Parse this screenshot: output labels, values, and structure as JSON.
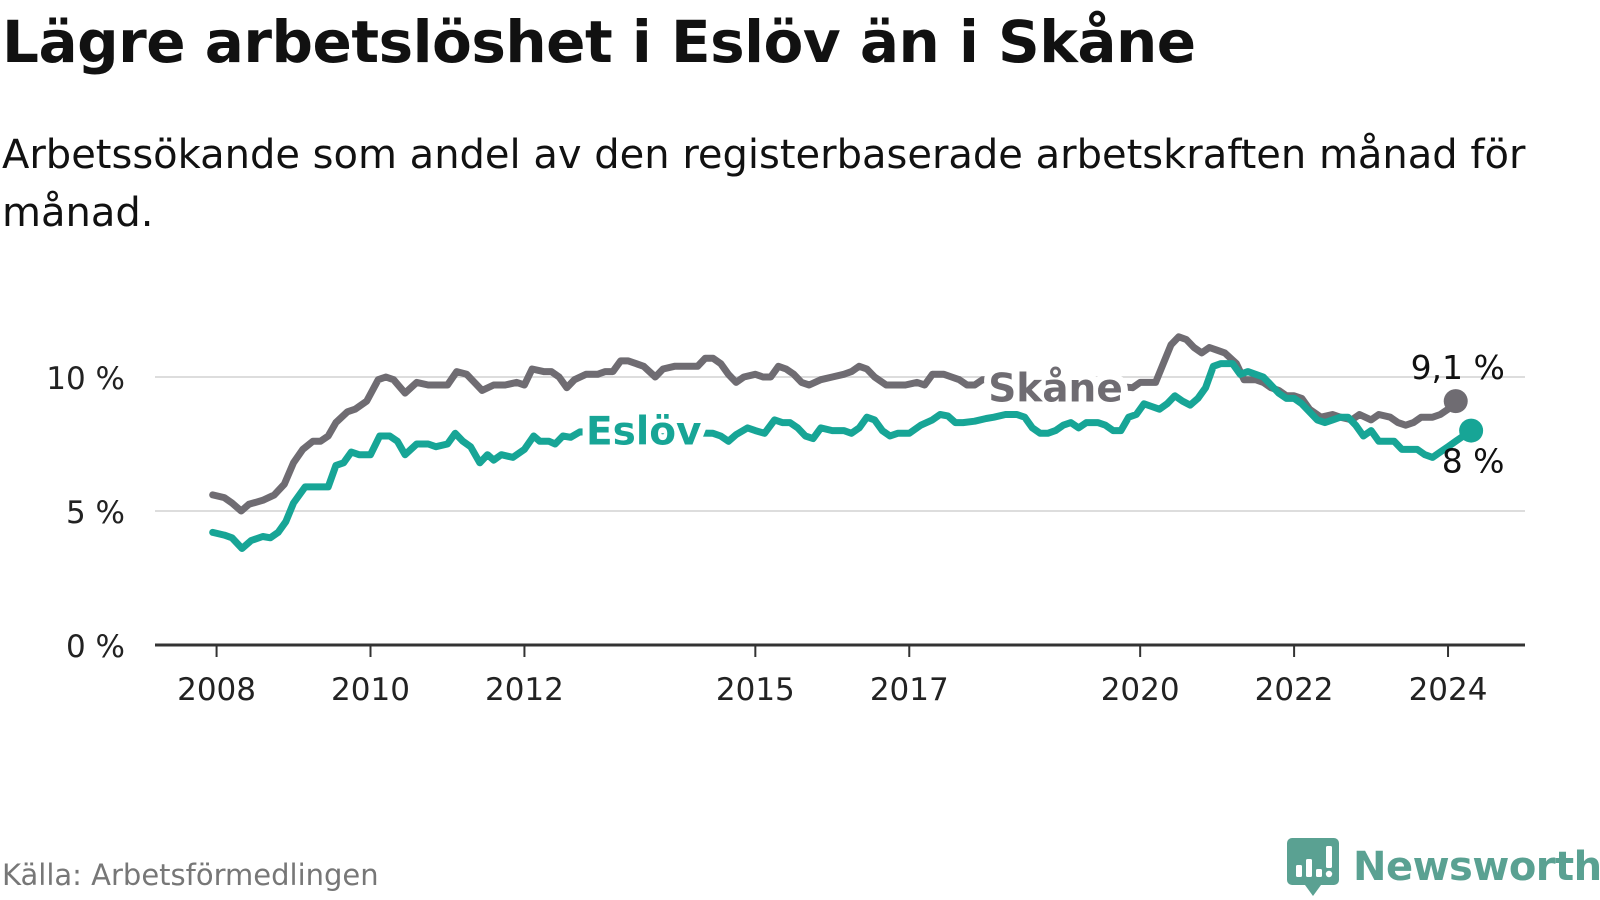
{
  "header": {
    "title": "Lägre arbetslöshet i Eslöv än i Skåne",
    "subtitle": "Arbetssökande som andel av den registerbaserade arbetskraften månad för månad."
  },
  "footer": {
    "source": "Källa: Arbetsförmedlingen",
    "brand": "Newsworthy",
    "brand_icon": "newsworthy-logo-icon"
  },
  "colors": {
    "skane": "#6f6c72",
    "eslov": "#17a596",
    "grid": "#dddddd",
    "axis": "#333333",
    "brand": "#5aa192"
  },
  "chart_data": {
    "type": "line",
    "title": "Lägre arbetslöshet i Eslöv än i Skåne",
    "xlabel": "",
    "ylabel": "",
    "x_range": [
      2007.2,
      2025.0
    ],
    "ylim": [
      0,
      12
    ],
    "grid": true,
    "y_ticks": [
      {
        "value": 0,
        "label": "0 %"
      },
      {
        "value": 5,
        "label": "5 %"
      },
      {
        "value": 10,
        "label": "10 %"
      }
    ],
    "x_ticks": [
      {
        "value": 2008,
        "label": "2008"
      },
      {
        "value": 2010,
        "label": "2010"
      },
      {
        "value": 2012,
        "label": "2012"
      },
      {
        "value": 2015,
        "label": "2015"
      },
      {
        "value": 2017,
        "label": "2017"
      },
      {
        "value": 2020,
        "label": "2020"
      },
      {
        "value": 2022,
        "label": "2022"
      },
      {
        "value": 2024,
        "label": "2024"
      }
    ],
    "series": [
      {
        "name": "Skåne",
        "color": "#6f6c72",
        "end_label": "9,1 %",
        "end_value": 9.1,
        "points": [
          [
            2007.95,
            5.6
          ],
          [
            2008.1,
            5.5
          ],
          [
            2008.2,
            5.3
          ],
          [
            2008.32,
            5.0
          ],
          [
            2008.42,
            5.25
          ],
          [
            2008.6,
            5.4
          ],
          [
            2008.75,
            5.6
          ],
          [
            2008.88,
            6.0
          ],
          [
            2009.0,
            6.8
          ],
          [
            2009.12,
            7.3
          ],
          [
            2009.25,
            7.6
          ],
          [
            2009.35,
            7.6
          ],
          [
            2009.45,
            7.8
          ],
          [
            2009.55,
            8.3
          ],
          [
            2009.7,
            8.7
          ],
          [
            2009.8,
            8.8
          ],
          [
            2009.95,
            9.1
          ],
          [
            2010.1,
            9.9
          ],
          [
            2010.2,
            10.0
          ],
          [
            2010.3,
            9.9
          ],
          [
            2010.45,
            9.4
          ],
          [
            2010.6,
            9.8
          ],
          [
            2010.75,
            9.7
          ],
          [
            2010.9,
            9.7
          ],
          [
            2011.0,
            9.7
          ],
          [
            2011.12,
            10.2
          ],
          [
            2011.25,
            10.1
          ],
          [
            2011.35,
            9.8
          ],
          [
            2011.45,
            9.5
          ],
          [
            2011.6,
            9.7
          ],
          [
            2011.75,
            9.7
          ],
          [
            2011.9,
            9.8
          ],
          [
            2012.0,
            9.7
          ],
          [
            2012.1,
            10.3
          ],
          [
            2012.25,
            10.2
          ],
          [
            2012.35,
            10.2
          ],
          [
            2012.45,
            10.0
          ],
          [
            2012.55,
            9.6
          ],
          [
            2012.65,
            9.9
          ],
          [
            2012.8,
            10.1
          ],
          [
            2012.95,
            10.1
          ],
          [
            2013.05,
            10.2
          ],
          [
            2013.15,
            10.2
          ],
          [
            2013.25,
            10.6
          ],
          [
            2013.35,
            10.6
          ],
          [
            2013.45,
            10.5
          ],
          [
            2013.55,
            10.4
          ],
          [
            2013.7,
            10.0
          ],
          [
            2013.8,
            10.3
          ],
          [
            2013.95,
            10.4
          ],
          [
            2014.1,
            10.4
          ],
          [
            2014.25,
            10.4
          ],
          [
            2014.35,
            10.7
          ],
          [
            2014.45,
            10.7
          ],
          [
            2014.55,
            10.5
          ],
          [
            2014.65,
            10.1
          ],
          [
            2014.75,
            9.8
          ],
          [
            2014.85,
            10.0
          ],
          [
            2015.0,
            10.1
          ],
          [
            2015.1,
            10.0
          ],
          [
            2015.2,
            10.0
          ],
          [
            2015.3,
            10.4
          ],
          [
            2015.4,
            10.3
          ],
          [
            2015.5,
            10.1
          ],
          [
            2015.6,
            9.8
          ],
          [
            2015.7,
            9.7
          ],
          [
            2015.85,
            9.9
          ],
          [
            2016.0,
            10.0
          ],
          [
            2016.15,
            10.1
          ],
          [
            2016.25,
            10.2
          ],
          [
            2016.35,
            10.4
          ],
          [
            2016.45,
            10.3
          ],
          [
            2016.55,
            10.0
          ],
          [
            2016.7,
            9.7
          ],
          [
            2016.8,
            9.7
          ],
          [
            2016.95,
            9.7
          ],
          [
            2017.1,
            9.8
          ],
          [
            2017.2,
            9.7
          ],
          [
            2017.3,
            10.1
          ],
          [
            2017.45,
            10.1
          ],
          [
            2017.55,
            10.0
          ],
          [
            2017.65,
            9.9
          ],
          [
            2017.75,
            9.7
          ],
          [
            2017.85,
            9.7
          ],
          [
            2017.95,
            9.9
          ],
          [
            2018.1,
            9.9
          ],
          [
            2018.2,
            9.9
          ],
          [
            2018.35,
            10.0
          ],
          [
            2019.9,
            9.6
          ],
          [
            2020.0,
            9.8
          ],
          [
            2020.1,
            9.8
          ],
          [
            2020.2,
            9.8
          ],
          [
            2020.3,
            10.5
          ],
          [
            2020.4,
            11.2
          ],
          [
            2020.5,
            11.5
          ],
          [
            2020.6,
            11.4
          ],
          [
            2020.7,
            11.1
          ],
          [
            2020.8,
            10.9
          ],
          [
            2020.9,
            11.1
          ],
          [
            2021.0,
            11.0
          ],
          [
            2021.1,
            10.9
          ],
          [
            2021.25,
            10.5
          ],
          [
            2021.35,
            9.9
          ],
          [
            2021.5,
            9.9
          ],
          [
            2021.6,
            9.8
          ],
          [
            2021.7,
            9.6
          ],
          [
            2021.8,
            9.5
          ],
          [
            2021.9,
            9.3
          ],
          [
            2022.0,
            9.3
          ],
          [
            2022.1,
            9.2
          ],
          [
            2022.2,
            8.8
          ],
          [
            2022.35,
            8.5
          ],
          [
            2022.5,
            8.6
          ],
          [
            2022.6,
            8.5
          ],
          [
            2022.75,
            8.4
          ],
          [
            2022.85,
            8.6
          ],
          [
            2023.0,
            8.4
          ],
          [
            2023.1,
            8.6
          ],
          [
            2023.25,
            8.5
          ],
          [
            2023.35,
            8.3
          ],
          [
            2023.45,
            8.2
          ],
          [
            2023.55,
            8.3
          ],
          [
            2023.65,
            8.5
          ],
          [
            2023.8,
            8.5
          ],
          [
            2023.9,
            8.6
          ],
          [
            2024.0,
            8.8
          ],
          [
            2024.1,
            9.1
          ]
        ]
      },
      {
        "name": "Eslöv",
        "color": "#17a596",
        "end_label": "8 %",
        "end_value": 8.0,
        "points": [
          [
            2007.95,
            4.2
          ],
          [
            2008.1,
            4.1
          ],
          [
            2008.2,
            4.0
          ],
          [
            2008.33,
            3.6
          ],
          [
            2008.45,
            3.9
          ],
          [
            2008.6,
            4.05
          ],
          [
            2008.7,
            4.0
          ],
          [
            2008.8,
            4.2
          ],
          [
            2008.9,
            4.6
          ],
          [
            2009.0,
            5.3
          ],
          [
            2009.15,
            5.9
          ],
          [
            2009.3,
            5.9
          ],
          [
            2009.45,
            5.9
          ],
          [
            2009.55,
            6.7
          ],
          [
            2009.65,
            6.8
          ],
          [
            2009.75,
            7.2
          ],
          [
            2009.85,
            7.1
          ],
          [
            2010.0,
            7.1
          ],
          [
            2010.12,
            7.8
          ],
          [
            2010.25,
            7.8
          ],
          [
            2010.35,
            7.6
          ],
          [
            2010.45,
            7.1
          ],
          [
            2010.6,
            7.5
          ],
          [
            2010.75,
            7.5
          ],
          [
            2010.85,
            7.4
          ],
          [
            2011.0,
            7.5
          ],
          [
            2011.1,
            7.9
          ],
          [
            2011.2,
            7.6
          ],
          [
            2011.3,
            7.4
          ],
          [
            2011.42,
            6.8
          ],
          [
            2011.52,
            7.1
          ],
          [
            2011.6,
            6.9
          ],
          [
            2011.7,
            7.1
          ],
          [
            2011.85,
            7.0
          ],
          [
            2012.0,
            7.3
          ],
          [
            2012.12,
            7.8
          ],
          [
            2012.2,
            7.6
          ],
          [
            2012.32,
            7.6
          ],
          [
            2012.4,
            7.5
          ],
          [
            2012.5,
            7.8
          ],
          [
            2012.6,
            7.75
          ],
          [
            2012.72,
            7.95
          ],
          [
            2014.45,
            7.9
          ],
          [
            2014.55,
            7.8
          ],
          [
            2014.65,
            7.6
          ],
          [
            2014.75,
            7.85
          ],
          [
            2014.9,
            8.1
          ],
          [
            2015.0,
            8.0
          ],
          [
            2015.12,
            7.9
          ],
          [
            2015.25,
            8.4
          ],
          [
            2015.35,
            8.3
          ],
          [
            2015.45,
            8.3
          ],
          [
            2015.55,
            8.1
          ],
          [
            2015.65,
            7.8
          ],
          [
            2015.75,
            7.7
          ],
          [
            2015.85,
            8.1
          ],
          [
            2016.0,
            8.0
          ],
          [
            2016.15,
            8.0
          ],
          [
            2016.25,
            7.9
          ],
          [
            2016.35,
            8.1
          ],
          [
            2016.45,
            8.5
          ],
          [
            2016.55,
            8.4
          ],
          [
            2016.65,
            8.0
          ],
          [
            2016.75,
            7.8
          ],
          [
            2016.85,
            7.9
          ],
          [
            2017.0,
            7.9
          ],
          [
            2017.15,
            8.2
          ],
          [
            2017.3,
            8.4
          ],
          [
            2017.4,
            8.6
          ],
          [
            2017.5,
            8.55
          ],
          [
            2017.6,
            8.3
          ],
          [
            2017.7,
            8.3
          ],
          [
            2017.85,
            8.35
          ],
          [
            2018.0,
            8.45
          ],
          [
            2018.1,
            8.5
          ],
          [
            2018.25,
            8.6
          ],
          [
            2018.4,
            8.6
          ],
          [
            2018.5,
            8.5
          ],
          [
            2018.6,
            8.1
          ],
          [
            2018.7,
            7.9
          ],
          [
            2018.8,
            7.9
          ],
          [
            2018.9,
            8.0
          ],
          [
            2019.0,
            8.2
          ],
          [
            2019.1,
            8.3
          ],
          [
            2019.2,
            8.1
          ],
          [
            2019.3,
            8.3
          ],
          [
            2019.45,
            8.3
          ],
          [
            2019.55,
            8.2
          ],
          [
            2019.65,
            8.0
          ],
          [
            2019.75,
            8.0
          ],
          [
            2019.85,
            8.5
          ],
          [
            2019.95,
            8.6
          ],
          [
            2020.05,
            9.0
          ],
          [
            2020.15,
            8.9
          ],
          [
            2020.25,
            8.8
          ],
          [
            2020.35,
            9.0
          ],
          [
            2020.45,
            9.3
          ],
          [
            2020.55,
            9.1
          ],
          [
            2020.65,
            8.95
          ],
          [
            2020.75,
            9.2
          ],
          [
            2020.85,
            9.6
          ],
          [
            2020.95,
            10.4
          ],
          [
            2021.05,
            10.5
          ],
          [
            2021.2,
            10.5
          ],
          [
            2021.3,
            10.1
          ],
          [
            2021.4,
            10.2
          ],
          [
            2021.5,
            10.1
          ],
          [
            2021.6,
            10.0
          ],
          [
            2021.7,
            9.7
          ],
          [
            2021.8,
            9.4
          ],
          [
            2021.9,
            9.2
          ],
          [
            2022.0,
            9.2
          ],
          [
            2022.1,
            9.0
          ],
          [
            2022.2,
            8.7
          ],
          [
            2022.3,
            8.4
          ],
          [
            2022.4,
            8.3
          ],
          [
            2022.5,
            8.4
          ],
          [
            2022.6,
            8.5
          ],
          [
            2022.7,
            8.5
          ],
          [
            2022.8,
            8.2
          ],
          [
            2022.9,
            7.8
          ],
          [
            2023.0,
            8.0
          ],
          [
            2023.1,
            7.6
          ],
          [
            2023.2,
            7.6
          ],
          [
            2023.3,
            7.6
          ],
          [
            2023.4,
            7.3
          ],
          [
            2023.5,
            7.3
          ],
          [
            2023.6,
            7.3
          ],
          [
            2023.7,
            7.1
          ],
          [
            2023.8,
            7.0
          ],
          [
            2023.9,
            7.2
          ],
          [
            2024.0,
            7.4
          ],
          [
            2024.1,
            7.6
          ],
          [
            2024.2,
            7.8
          ],
          [
            2024.3,
            8.0
          ]
        ]
      }
    ],
    "annotations": [
      {
        "series": "Skåne",
        "text": "Skåne",
        "x": 2018.9,
        "y": 9.6
      },
      {
        "series": "Eslöv",
        "text": "Eslöv",
        "x": 2013.55,
        "y": 8.0
      }
    ]
  }
}
